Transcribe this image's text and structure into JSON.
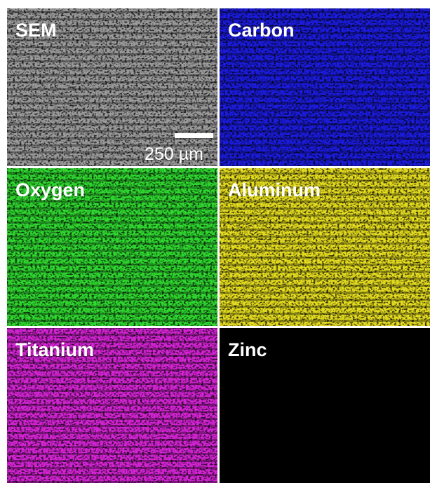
{
  "panels": [
    {
      "label": "SEM",
      "color": "#9c9c9c",
      "speckle": "#3a3a3a"
    },
    {
      "label": "Carbon",
      "color": "#1c1ce0",
      "speckle": "#000030"
    },
    {
      "label": "Oxygen",
      "color": "#30d830",
      "speckle": "#001800"
    },
    {
      "label": "Aluminum",
      "color": "#e4dc20",
      "speckle": "#201e00"
    },
    {
      "label": "Titanium",
      "color": "#d424d4",
      "speckle": "#280028"
    },
    {
      "label": "Zinc",
      "color": "#000000",
      "speckle": "#20e0e8"
    }
  ],
  "scale_bar": {
    "label": "250 µm"
  }
}
